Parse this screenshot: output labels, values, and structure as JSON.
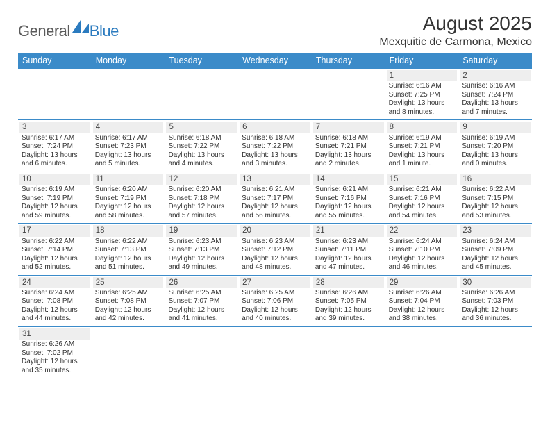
{
  "brand": {
    "general": "General",
    "blue": "Blue"
  },
  "colors": {
    "header_bg": "#3b8bc9",
    "header_fg": "#ffffff",
    "daynum_bg": "#eeeeee",
    "row_border": "#3b8bc9",
    "text": "#333333"
  },
  "title": "August 2025",
  "location": "Mexquitic de Carmona, Mexico",
  "day_names": [
    "Sunday",
    "Monday",
    "Tuesday",
    "Wednesday",
    "Thursday",
    "Friday",
    "Saturday"
  ],
  "weeks": [
    [
      null,
      null,
      null,
      null,
      null,
      {
        "n": "1",
        "sr": "Sunrise: 6:16 AM",
        "ss": "Sunset: 7:25 PM",
        "d1": "Daylight: 13 hours",
        "d2": "and 8 minutes."
      },
      {
        "n": "2",
        "sr": "Sunrise: 6:16 AM",
        "ss": "Sunset: 7:24 PM",
        "d1": "Daylight: 13 hours",
        "d2": "and 7 minutes."
      }
    ],
    [
      {
        "n": "3",
        "sr": "Sunrise: 6:17 AM",
        "ss": "Sunset: 7:24 PM",
        "d1": "Daylight: 13 hours",
        "d2": "and 6 minutes."
      },
      {
        "n": "4",
        "sr": "Sunrise: 6:17 AM",
        "ss": "Sunset: 7:23 PM",
        "d1": "Daylight: 13 hours",
        "d2": "and 5 minutes."
      },
      {
        "n": "5",
        "sr": "Sunrise: 6:18 AM",
        "ss": "Sunset: 7:22 PM",
        "d1": "Daylight: 13 hours",
        "d2": "and 4 minutes."
      },
      {
        "n": "6",
        "sr": "Sunrise: 6:18 AM",
        "ss": "Sunset: 7:22 PM",
        "d1": "Daylight: 13 hours",
        "d2": "and 3 minutes."
      },
      {
        "n": "7",
        "sr": "Sunrise: 6:18 AM",
        "ss": "Sunset: 7:21 PM",
        "d1": "Daylight: 13 hours",
        "d2": "and 2 minutes."
      },
      {
        "n": "8",
        "sr": "Sunrise: 6:19 AM",
        "ss": "Sunset: 7:21 PM",
        "d1": "Daylight: 13 hours",
        "d2": "and 1 minute."
      },
      {
        "n": "9",
        "sr": "Sunrise: 6:19 AM",
        "ss": "Sunset: 7:20 PM",
        "d1": "Daylight: 13 hours",
        "d2": "and 0 minutes."
      }
    ],
    [
      {
        "n": "10",
        "sr": "Sunrise: 6:19 AM",
        "ss": "Sunset: 7:19 PM",
        "d1": "Daylight: 12 hours",
        "d2": "and 59 minutes."
      },
      {
        "n": "11",
        "sr": "Sunrise: 6:20 AM",
        "ss": "Sunset: 7:19 PM",
        "d1": "Daylight: 12 hours",
        "d2": "and 58 minutes."
      },
      {
        "n": "12",
        "sr": "Sunrise: 6:20 AM",
        "ss": "Sunset: 7:18 PM",
        "d1": "Daylight: 12 hours",
        "d2": "and 57 minutes."
      },
      {
        "n": "13",
        "sr": "Sunrise: 6:21 AM",
        "ss": "Sunset: 7:17 PM",
        "d1": "Daylight: 12 hours",
        "d2": "and 56 minutes."
      },
      {
        "n": "14",
        "sr": "Sunrise: 6:21 AM",
        "ss": "Sunset: 7:16 PM",
        "d1": "Daylight: 12 hours",
        "d2": "and 55 minutes."
      },
      {
        "n": "15",
        "sr": "Sunrise: 6:21 AM",
        "ss": "Sunset: 7:16 PM",
        "d1": "Daylight: 12 hours",
        "d2": "and 54 minutes."
      },
      {
        "n": "16",
        "sr": "Sunrise: 6:22 AM",
        "ss": "Sunset: 7:15 PM",
        "d1": "Daylight: 12 hours",
        "d2": "and 53 minutes."
      }
    ],
    [
      {
        "n": "17",
        "sr": "Sunrise: 6:22 AM",
        "ss": "Sunset: 7:14 PM",
        "d1": "Daylight: 12 hours",
        "d2": "and 52 minutes."
      },
      {
        "n": "18",
        "sr": "Sunrise: 6:22 AM",
        "ss": "Sunset: 7:13 PM",
        "d1": "Daylight: 12 hours",
        "d2": "and 51 minutes."
      },
      {
        "n": "19",
        "sr": "Sunrise: 6:23 AM",
        "ss": "Sunset: 7:13 PM",
        "d1": "Daylight: 12 hours",
        "d2": "and 49 minutes."
      },
      {
        "n": "20",
        "sr": "Sunrise: 6:23 AM",
        "ss": "Sunset: 7:12 PM",
        "d1": "Daylight: 12 hours",
        "d2": "and 48 minutes."
      },
      {
        "n": "21",
        "sr": "Sunrise: 6:23 AM",
        "ss": "Sunset: 7:11 PM",
        "d1": "Daylight: 12 hours",
        "d2": "and 47 minutes."
      },
      {
        "n": "22",
        "sr": "Sunrise: 6:24 AM",
        "ss": "Sunset: 7:10 PM",
        "d1": "Daylight: 12 hours",
        "d2": "and 46 minutes."
      },
      {
        "n": "23",
        "sr": "Sunrise: 6:24 AM",
        "ss": "Sunset: 7:09 PM",
        "d1": "Daylight: 12 hours",
        "d2": "and 45 minutes."
      }
    ],
    [
      {
        "n": "24",
        "sr": "Sunrise: 6:24 AM",
        "ss": "Sunset: 7:08 PM",
        "d1": "Daylight: 12 hours",
        "d2": "and 44 minutes."
      },
      {
        "n": "25",
        "sr": "Sunrise: 6:25 AM",
        "ss": "Sunset: 7:08 PM",
        "d1": "Daylight: 12 hours",
        "d2": "and 42 minutes."
      },
      {
        "n": "26",
        "sr": "Sunrise: 6:25 AM",
        "ss": "Sunset: 7:07 PM",
        "d1": "Daylight: 12 hours",
        "d2": "and 41 minutes."
      },
      {
        "n": "27",
        "sr": "Sunrise: 6:25 AM",
        "ss": "Sunset: 7:06 PM",
        "d1": "Daylight: 12 hours",
        "d2": "and 40 minutes."
      },
      {
        "n": "28",
        "sr": "Sunrise: 6:26 AM",
        "ss": "Sunset: 7:05 PM",
        "d1": "Daylight: 12 hours",
        "d2": "and 39 minutes."
      },
      {
        "n": "29",
        "sr": "Sunrise: 6:26 AM",
        "ss": "Sunset: 7:04 PM",
        "d1": "Daylight: 12 hours",
        "d2": "and 38 minutes."
      },
      {
        "n": "30",
        "sr": "Sunrise: 6:26 AM",
        "ss": "Sunset: 7:03 PM",
        "d1": "Daylight: 12 hours",
        "d2": "and 36 minutes."
      }
    ],
    [
      {
        "n": "31",
        "sr": "Sunrise: 6:26 AM",
        "ss": "Sunset: 7:02 PM",
        "d1": "Daylight: 12 hours",
        "d2": "and 35 minutes."
      },
      null,
      null,
      null,
      null,
      null,
      null
    ]
  ]
}
